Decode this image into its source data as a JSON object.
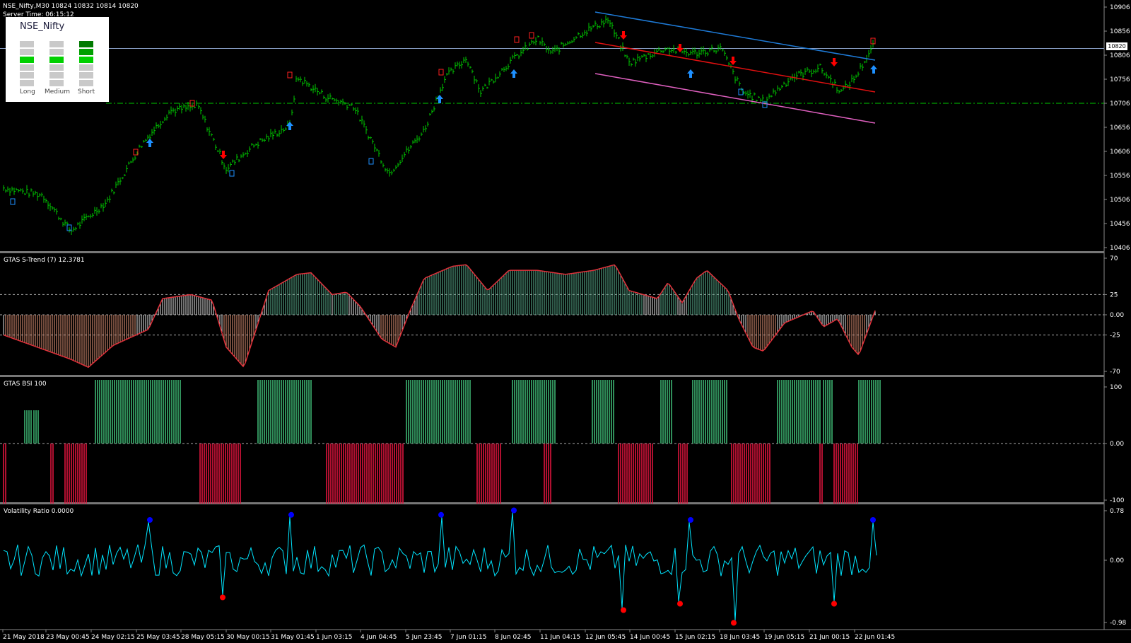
{
  "chart_header": "NSE_Nifty,M30  10824 10832 10814 10820",
  "server_time": "Server Time: 06:15:12",
  "signal_panel": {
    "title": "NSE_Nifty",
    "columns": [
      {
        "label": "Long"
      },
      {
        "label": "Medium"
      },
      {
        "label": "Short"
      }
    ]
  },
  "price_axis": {
    "ticks": [
      "10906",
      "10856",
      "10806",
      "10756",
      "10706",
      "10656",
      "10606",
      "10556",
      "10506",
      "10456",
      "10406"
    ],
    "current": "10820"
  },
  "strend": {
    "title": "GTAS S-Trend (7) 12.3781",
    "ticks": [
      "70",
      "25",
      "0.00",
      "-25",
      "-70"
    ]
  },
  "bsi": {
    "title": "GTAS BSI 100",
    "ticks": [
      "100",
      "0.00",
      "-100"
    ]
  },
  "volatility": {
    "title": "Volatility Ratio 0.0000",
    "ticks": [
      "0.78",
      "0.00",
      "-0.98"
    ]
  },
  "time_axis": [
    "21 May 2018",
    "23 May 00:45",
    "24 May 02:15",
    "25 May 03:45",
    "28 May 05:15",
    "30 May 00:15",
    "31 May 01:45",
    "1 Jun 03:15",
    "4 Jun 04:45",
    "5 Jun 23:45",
    "7 Jun 01:15",
    "8 Jun 02:45",
    "11 Jun 04:15",
    "12 Jun 05:45",
    "14 Jun 00:45",
    "15 Jun 02:15",
    "18 Jun 03:45",
    "19 Jun 05:15",
    "21 Jun 00:15",
    "22 Jun 01:45"
  ],
  "colors": {
    "bull_candle": "#00c800",
    "buy_arrow": "#1e90ff",
    "sell_arrow": "#ff0000",
    "trend_fill": "#5fb896",
    "bsi_buy": "#3cb371",
    "bsi_sell": "#dc143c",
    "volatility_line": "#00e5ff"
  }
}
